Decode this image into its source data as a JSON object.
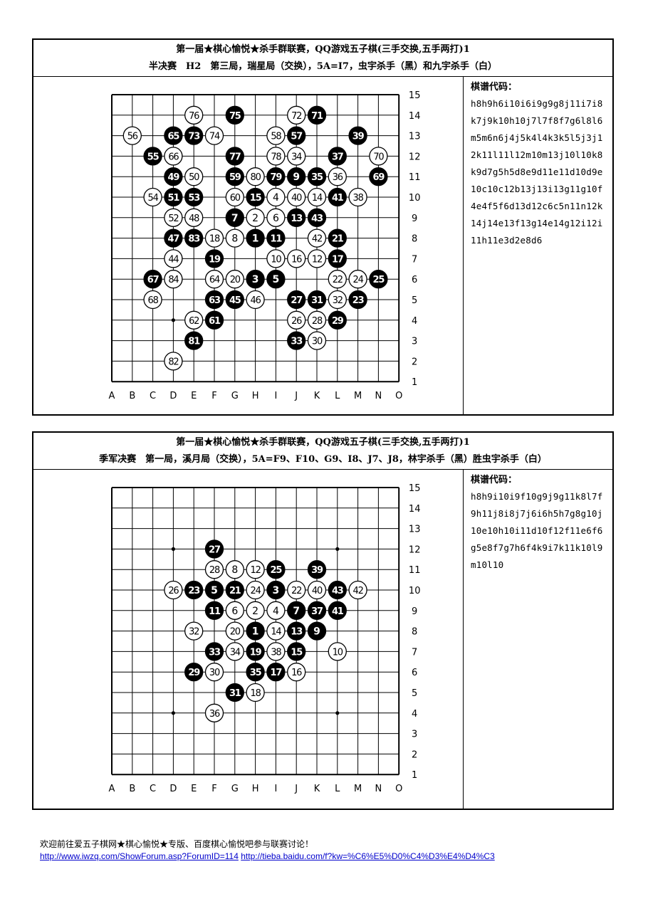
{
  "games": [
    {
      "title_line1": "第一届★棋心愉悦★杀手群联赛，QQ游戏五子棋(三手交换,五手两打)1",
      "title_line2": "半决赛　H2　第三局，瑞星局（交换），5A=I7，虫宇杀手（黑）和九宇杀手（白）",
      "code_title": "棋谱代码：",
      "code_lines": [
        "h8h9h6i10i6i9g9g8j11i7i8",
        "k7j9k10h10j7l7f8f7g6l8l6",
        "m5m6n6j4j5k4l4k3k5l5j3j1",
        "2k11l11l12m10m13j10l10k8",
        "k9d7g5h5d8e9d11e11d10d9e",
        "10c10c12b13j13i13g11g10f",
        "4e4f5f6d13d12c6c5n11n12k",
        "14j14e13f13g14e14g12i12i",
        "11h11e3d2e8d6"
      ],
      "col_labels": [
        "A",
        "B",
        "C",
        "D",
        "E",
        "F",
        "G",
        "H",
        "I",
        "J",
        "K",
        "L",
        "M",
        "N",
        "O"
      ],
      "row_labels": [
        "15",
        "14",
        "13",
        "12",
        "11",
        "10",
        "9",
        "8",
        "7",
        "6",
        "5",
        "4",
        "3",
        "2",
        "1"
      ],
      "moves": [
        "h8",
        "h9",
        "h6",
        "i10",
        "i6",
        "i9",
        "g9",
        "g8",
        "j11",
        "i7",
        "i8",
        "k7",
        "j9",
        "k10",
        "h10",
        "j7",
        "l7",
        "f8",
        "f7",
        "g6",
        "l8",
        "l6",
        "m5",
        "m6",
        "n6",
        "j4",
        "j5",
        "k4",
        "l4",
        "k3",
        "k5",
        "l5",
        "j3",
        "j12",
        "k11",
        "l11",
        "l12",
        "m10",
        "m13",
        "j10",
        "l10",
        "k8",
        "k9",
        "d7",
        "g5",
        "h5",
        "d8",
        "e9",
        "d11",
        "e11",
        "d10",
        "d9",
        "e10",
        "c10",
        "c12",
        "b13",
        "j13",
        "i13",
        "g11",
        "g10",
        "f4",
        "e4",
        "f5",
        "f6",
        "d13",
        "d12",
        "c6",
        "c5",
        "n11",
        "n12",
        "k14",
        "j14",
        "e13",
        "f13",
        "g14",
        "e14",
        "g12",
        "i12",
        "i11",
        "h11",
        "e3",
        "d2",
        "e8",
        "d6"
      ]
    },
    {
      "title_line1": "第一届★棋心愉悦★杀手群联赛，QQ游戏五子棋(三手交换,五手两打)1",
      "title_line2": "季军决赛　第一局，溪月局（交换），5A=F9、F10、G9、I8、J7、J8，林宇杀手（黑）胜虫宇杀手（白）",
      "code_title": "棋谱代码：",
      "code_lines": [
        "h8h9i10i9f10g9j9g11k8l7f",
        "9h11j8i8j7j6i6h5h7g8g10j",
        "10e10h10i11d10f12f11e6f6",
        "g5e8f7g7h6f4k9i7k11k10l9",
        "m10l10"
      ],
      "col_labels": [
        "A",
        "B",
        "C",
        "D",
        "E",
        "F",
        "G",
        "H",
        "I",
        "J",
        "K",
        "L",
        "M",
        "N",
        "O"
      ],
      "row_labels": [
        "15",
        "14",
        "13",
        "12",
        "11",
        "10",
        "9",
        "8",
        "7",
        "6",
        "5",
        "4",
        "3",
        "2",
        "1"
      ],
      "moves": [
        "h8",
        "h9",
        "i10",
        "i9",
        "f10",
        "g9",
        "j9",
        "g11",
        "k8",
        "l7",
        "f9",
        "h11",
        "j8",
        "i8",
        "j7",
        "j6",
        "i6",
        "h5",
        "h7",
        "g8",
        "g10",
        "j10",
        "e10",
        "h10",
        "i11",
        "d10",
        "f12",
        "f11",
        "e6",
        "f6",
        "g5",
        "e8",
        "f7",
        "g7",
        "h6",
        "f4",
        "k9",
        "i7",
        "k11",
        "k10",
        "l9",
        "m10",
        "l10"
      ]
    }
  ],
  "footer": {
    "line1": "欢迎前往爱五子棋网★棋心愉悦★专版、百度棋心愉悦吧参与联赛讨论！",
    "link1": "http://www.iwzq.com/ShowForum.asp?ForumID=114",
    "link2": "http://tieba.baidu.com/f?kw=%C6%E5%D0%C4%D3%E4%D4%C3"
  }
}
